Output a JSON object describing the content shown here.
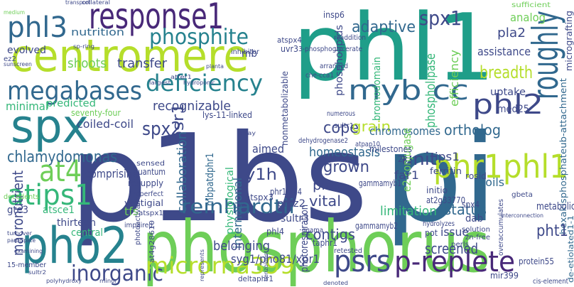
{
  "words": [
    "p1bs",
    "pi",
    "phl1",
    "phosphorus",
    "centromere",
    "response1",
    "phl3",
    "phosphite",
    "megabases",
    "spx",
    "at4",
    "atips1",
    "pho2",
    "inorganic",
    "microrna399",
    "reinhardtii",
    "psrs",
    "p-replete",
    "phr1phl1",
    "roughly",
    "myb cc",
    "phl2",
    "spx1",
    "adaptive",
    "deficiency",
    "spx2",
    "psr1",
    "y1h",
    "cope",
    "grain",
    "chromosomes",
    "ortholog",
    "homeostasis",
    "grown",
    "unit",
    "status",
    "limitation",
    "chlamydomonas",
    "macronutrient",
    "collaboration",
    "international",
    "mbpatdphr1",
    "physiological",
    "contigs",
    "belonging",
    "syg1/pho81/xpr1",
    "photorespiration",
    "phospholipase",
    "efficiency",
    "bromodomain",
    "phospholipids",
    "e2-conjugase",
    "breadth",
    "assistance",
    "uptake",
    "med25",
    "pla2",
    "analog",
    "sufficient",
    "micrografting",
    "hexakisphosphateub-attachment",
    "de-etiolated1-1",
    "metabolic",
    "nutrition",
    "evolved",
    "shoots",
    "transfer",
    "mb",
    "recognizable",
    "coiled-coil",
    "predicted",
    "minimal",
    "seventy-four",
    "comprising",
    "gte3",
    "atsce1",
    "decedents",
    "thirteen",
    "central",
    "tfs",
    "atspx1",
    "vestigial",
    "resupply",
    "quantum",
    "sensed",
    "vital",
    "pias",
    "ips1",
    "far1",
    "ferritin",
    "initio",
    "at2g33770",
    "rosid",
    "soils",
    "phr1phl4",
    "pldz2",
    "atspx3",
    "phl4",
    "gammamyb2",
    "gammamyb1",
    "aimed",
    "milestones",
    "nonmetabolizable",
    "2x",
    "insp6",
    "readdition",
    "atspx4",
    "inhibitor",
    "uvr3",
    "3-phosphoglycerate",
    "arranged",
    "che-cca1",
    "sultr1",
    "numerous",
    "dehydrogenase2",
    "atpap10",
    "deletion",
    "lys-11-linked",
    "ggama",
    "sultr3",
    "taphr1",
    "retested",
    "issue",
    "screened",
    "pot",
    "dab",
    "solution",
    "zn-free",
    "perls",
    "pht1",
    "protein55",
    "mir399",
    "cis-element",
    "spx4",
    "overaccumulates",
    "hydrolyzes",
    "deltaphr1",
    "15-member",
    "polyhydroxy",
    "minor",
    "denoted",
    "photoactivation",
    "at4g28610",
    "imperfect",
    "impaired",
    "represents",
    "benzoides",
    "interconnection",
    "gbeta",
    "medium",
    "sunscreen",
    "collateral",
    "transport",
    "sp-ring",
    "planta",
    "ez2",
    "atfer1",
    "hydroponic",
    "largest",
    "array",
    "turnover",
    "participate",
    "examining",
    "sultr2"
  ]
}
